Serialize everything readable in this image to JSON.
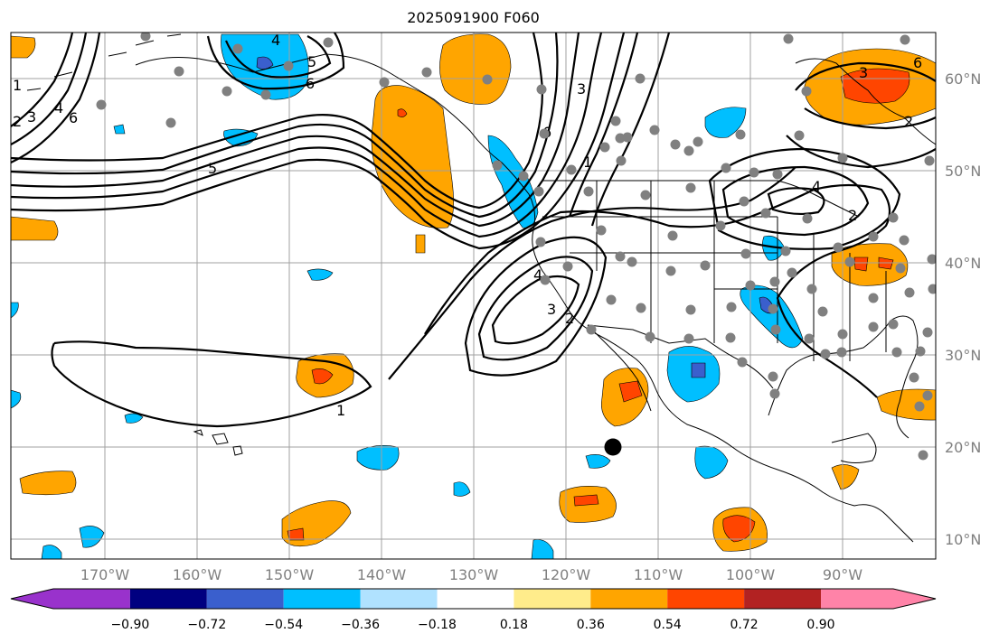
{
  "title": "2025091900 F060",
  "lat_labels": [
    "60°N",
    "50°N",
    "40°N",
    "30°N",
    "20°N",
    "10°N"
  ],
  "lon_labels": [
    "170°W",
    "160°W",
    "150°W",
    "140°W",
    "130°W",
    "120°W",
    "110°W",
    "100°W",
    "90°W"
  ],
  "colorbar": {
    "tick_labels": [
      "−0.90",
      "−0.72",
      "−0.54",
      "−0.36",
      "−0.18",
      "0.18",
      "0.36",
      "0.54",
      "0.72",
      "0.90"
    ],
    "colors": [
      "#9932cc",
      "#000080",
      "#3a5fcd",
      "#00bfff",
      "#b0e2ff",
      "#ffffff",
      "#ffec8b",
      "#ffa500",
      "#ff4500",
      "#b22222",
      "#ff83a8"
    ]
  },
  "contour_labels": [
    "1",
    "2",
    "3",
    "4",
    "5",
    "6"
  ],
  "colors": {
    "grid": "#a0a0a0",
    "station": "#808080",
    "contour": "#000000",
    "marker": "#000000"
  }
}
